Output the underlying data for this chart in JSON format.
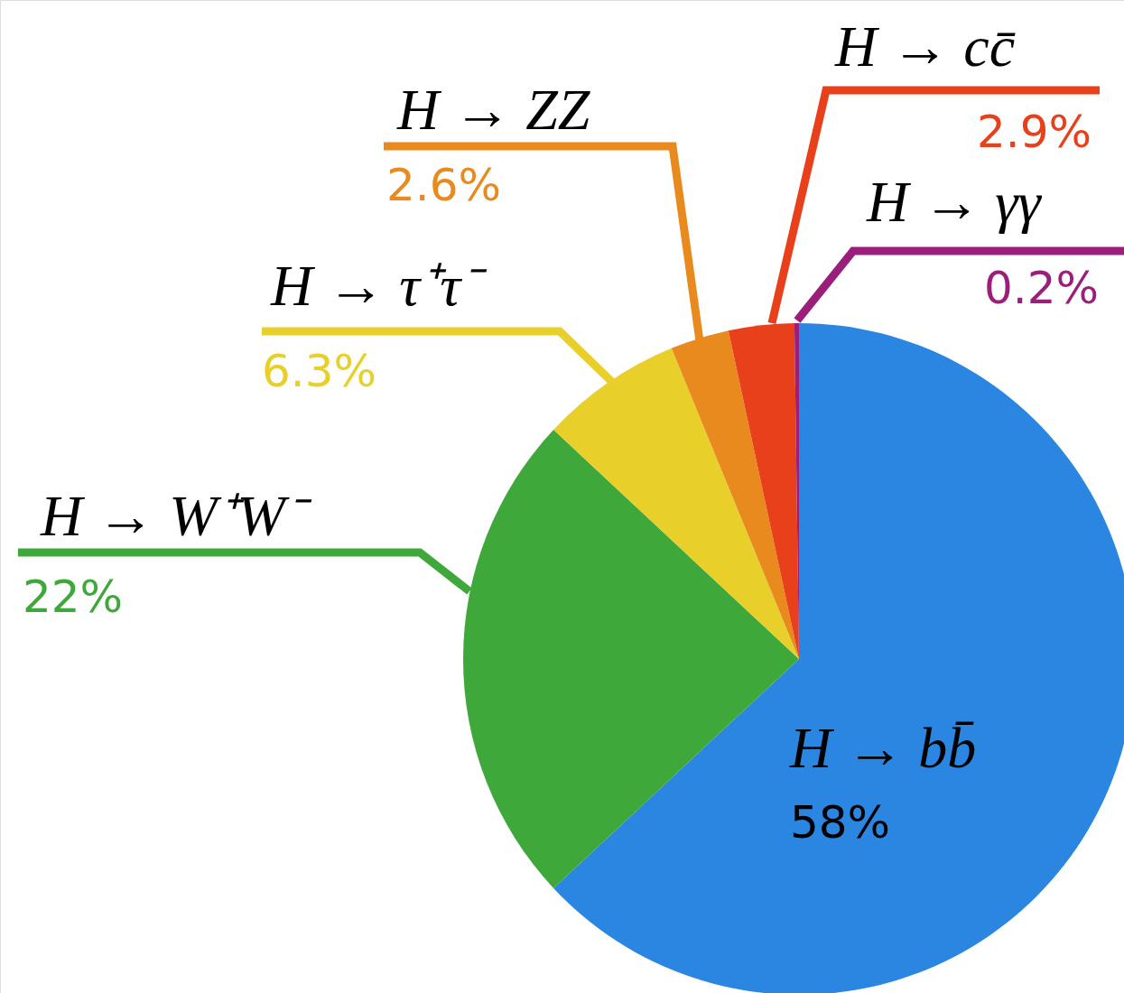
{
  "chart_data": {
    "type": "pie",
    "categories": [
      "H → bb̄",
      "H → W⁺W⁻",
      "H → τ⁺τ⁻",
      "H → ZZ",
      "H → cc̄",
      "H → γγ"
    ],
    "values": [
      58,
      22,
      6.3,
      2.6,
      2.9,
      0.2
    ],
    "value_labels": [
      "58%",
      "22%",
      "6.3%",
      "2.6%",
      "2.9%",
      "0.2%"
    ],
    "colors": [
      "#2a86e0",
      "#3fa83a",
      "#e8cf2a",
      "#e88a1e",
      "#e8401a",
      "#9b1f7a"
    ]
  }
}
